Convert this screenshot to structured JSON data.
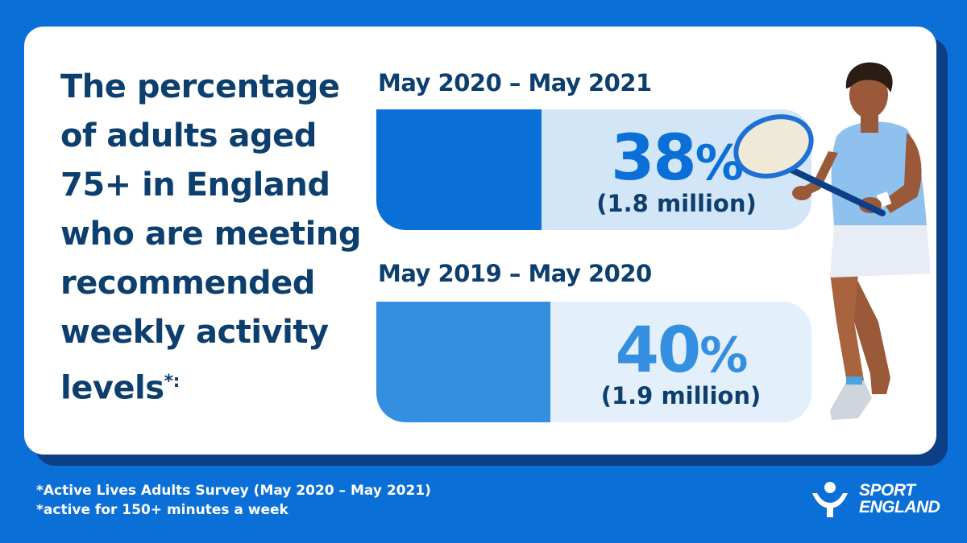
{
  "headline": {
    "text": "The percentage of adults aged 75+ in England who are meeting recommended weekly activity levels",
    "suffix": "*:"
  },
  "stats": [
    {
      "period": "May 2020 – May 2021",
      "value": "38",
      "unit": "%",
      "count": "(1.8 million)",
      "fraction": 0.38,
      "fill_color": "#0a6fd6",
      "track_color": "#d3e6f7",
      "value_color": "#0a6fd6"
    },
    {
      "period": "May 2019 – May 2020",
      "value": "40",
      "unit": "%",
      "count": "(1.9 million)",
      "fraction": 0.4,
      "fill_color": "#358fe0",
      "track_color": "#e3effa",
      "value_color": "#358fe0"
    }
  ],
  "footnotes": [
    "*Active Lives Adults Survey (May 2020 – May 2021)",
    "*active for 150+ minutes a week"
  ],
  "logo": {
    "line1": "SPORT",
    "line2": "ENGLAND"
  },
  "colors": {
    "background": "#0a6fd6",
    "card": "#ffffff",
    "navy": "#0d3f6e",
    "shadow": "#0d3f86"
  },
  "illustration": "tennis-player"
}
